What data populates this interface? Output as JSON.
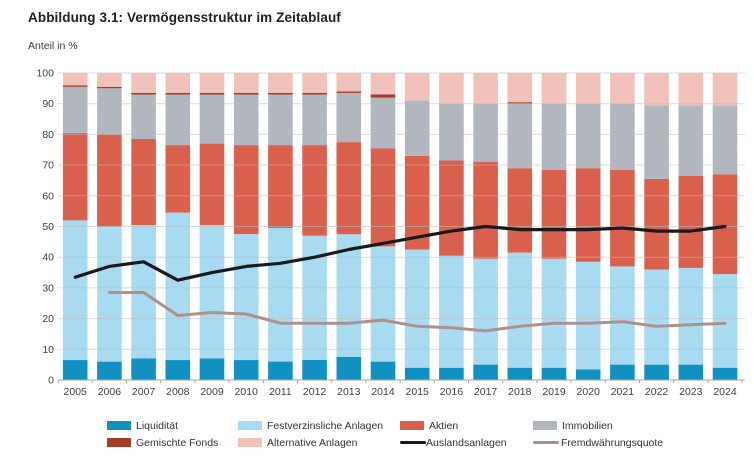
{
  "header": {
    "title": "Abbildung 3.1: Vermögensstruktur im Zeitablauf"
  },
  "chart_data": {
    "type": "bar",
    "subtype": "stacked-bar-with-lines",
    "title": "Abbildung 3.1: Vermögensstruktur im Zeitablauf",
    "xlabel": "",
    "ylabel": "Anteil in %",
    "ylim": [
      0,
      100
    ],
    "yticks": [
      "0",
      "10",
      "20",
      "30",
      "40",
      "50",
      "60",
      "70",
      "80",
      "90",
      "100"
    ],
    "grid": true,
    "legend_position": "bottom",
    "categories": [
      "2005",
      "2006",
      "2007",
      "2008",
      "2009",
      "2010",
      "2011",
      "2012",
      "2013",
      "2014",
      "2015",
      "2016",
      "2017",
      "2018",
      "2019",
      "2020",
      "2021",
      "2022",
      "2023",
      "2024"
    ],
    "series": [
      {
        "key": "liquiditaet",
        "name": "Liquidität",
        "type": "bar",
        "color": "#1191c1",
        "values": [
          6.5,
          6,
          7,
          6.5,
          7,
          6.5,
          6,
          6.5,
          7.5,
          6,
          4,
          4,
          5,
          4,
          4,
          3.5,
          5,
          5,
          5,
          4
        ]
      },
      {
        "key": "festverzinsliche-anlagen",
        "name": "Festverzinsliche Anlagen",
        "type": "bar",
        "color": "#a8daf2",
        "values": [
          45.5,
          44,
          43.5,
          48,
          43.5,
          41,
          43.5,
          40.5,
          40,
          37.5,
          38.5,
          36.5,
          34.5,
          37.5,
          35.5,
          35,
          32,
          31,
          31.5,
          30.5
        ]
      },
      {
        "key": "aktien",
        "name": "Aktien",
        "type": "bar",
        "color": "#d9604c",
        "values": [
          28.5,
          30,
          28,
          22,
          26.5,
          29,
          27,
          29.5,
          30,
          32,
          30.5,
          31,
          31.5,
          27.5,
          29,
          30.5,
          31.5,
          29.5,
          30,
          32.5
        ]
      },
      {
        "key": "immobilien",
        "name": "Immobilien",
        "type": "bar",
        "color": "#b2b7bf",
        "values": [
          15,
          15,
          14.5,
          16.5,
          16,
          16.5,
          16.5,
          16.5,
          16,
          16.5,
          18,
          18.5,
          19,
          21,
          21.5,
          21,
          21.5,
          24,
          23,
          22.5
        ]
      },
      {
        "key": "gemischte-fonds",
        "name": "Gemischte Fonds",
        "type": "bar",
        "color": "#a63c2a",
        "values": [
          0.5,
          0.5,
          0.5,
          0.5,
          0.5,
          0.5,
          0.5,
          0.5,
          0.5,
          1,
          0,
          0,
          0,
          0.5,
          0,
          0,
          0,
          0,
          0,
          0
        ]
      },
      {
        "key": "alternative-anlagen",
        "name": "Alternative Anlagen",
        "type": "bar",
        "color": "#f0c2b9",
        "values": [
          4,
          4.5,
          6.5,
          6.5,
          6.5,
          6.5,
          6.5,
          6.5,
          6,
          7,
          9,
          10,
          10,
          9.5,
          10,
          10,
          10,
          10.5,
          10.5,
          10.5
        ]
      },
      {
        "key": "auslandsanlagen",
        "name": "Auslandsanlagen",
        "type": "line",
        "color": "#1a1a1a",
        "values": [
          33.5,
          37,
          38.5,
          32.5,
          35,
          37,
          38,
          40,
          42.5,
          44.5,
          46.5,
          48.5,
          50,
          49,
          49,
          49,
          49.5,
          48.5,
          48.5,
          50
        ]
      },
      {
        "key": "fremdwaehrungsquote",
        "name": "Fremdwährungsquote",
        "type": "line",
        "color": "#ac9089",
        "values": [
          null,
          28.5,
          28.5,
          21,
          22,
          21.5,
          18.5,
          18.5,
          18.5,
          19.5,
          17.5,
          17,
          16,
          17.5,
          18.5,
          18.5,
          19,
          17.5,
          18,
          18.5
        ]
      }
    ],
    "legend_order_row1": [
      "Liquidität",
      "Festverzinsliche Anlagen",
      "Aktien",
      "Immobilien"
    ],
    "legend_order_row2": [
      "Gemischte Fonds",
      "Alternative Anlagen",
      "Auslandsanlagen",
      "Fremdwährungsquote"
    ],
    "colors": {
      "gridline": "#bdbdbd",
      "axis": "#a6a6a6",
      "tick_label": "#404040"
    }
  }
}
